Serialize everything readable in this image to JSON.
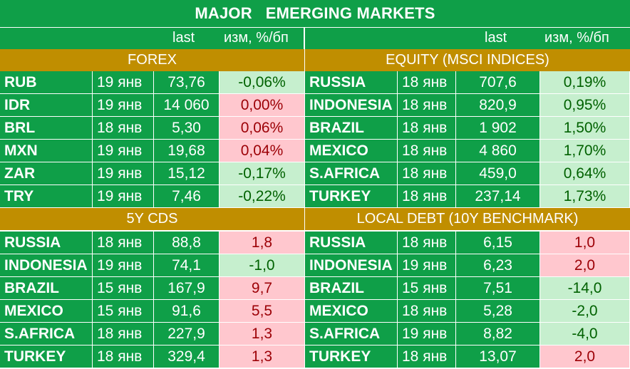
{
  "title": "MAJOR   EMERGING MARKETS",
  "header": {
    "left_last": "last",
    "left_change": "изм, %/бп",
    "right_last": "last",
    "right_change": "изм, %/бп"
  },
  "colors": {
    "green": "#0f9f48",
    "gold": "#c08e00",
    "neg_bg": "#c6efce",
    "neg_fg": "#006100",
    "pos_bg": "#ffc7ce",
    "pos_fg": "#9c0006"
  },
  "sections": {
    "forex": {
      "title": "FOREX",
      "rows": [
        {
          "name": "RUB",
          "date": "19 янв",
          "last": "73,76",
          "change": "-0,06%",
          "tone": "neg"
        },
        {
          "name": "IDR",
          "date": "19 янв",
          "last": "14 060",
          "change": "0,00%",
          "tone": "pos"
        },
        {
          "name": "BRL",
          "date": "18 янв",
          "last": "5,30",
          "change": "0,06%",
          "tone": "pos"
        },
        {
          "name": "MXN",
          "date": "19 янв",
          "last": "19,68",
          "change": "0,04%",
          "tone": "pos"
        },
        {
          "name": "ZAR",
          "date": "19 янв",
          "last": "15,12",
          "change": "-0,17%",
          "tone": "neg"
        },
        {
          "name": "TRY",
          "date": "19 янв",
          "last": "7,46",
          "change": "-0,22%",
          "tone": "neg"
        }
      ]
    },
    "equity": {
      "title": "EQUITY (MSCI INDICES)",
      "rows": [
        {
          "name": "RUSSIA",
          "date": "18 янв",
          "last": "707,6",
          "change": "0,19%",
          "tone": "neg"
        },
        {
          "name": "INDONESIA",
          "date": "18 янв",
          "last": "820,9",
          "change": "0,95%",
          "tone": "neg"
        },
        {
          "name": "BRAZIL",
          "date": "18 янв",
          "last": "1 902",
          "change": "1,50%",
          "tone": "neg"
        },
        {
          "name": "MEXICO",
          "date": "18 янв",
          "last": "4 860",
          "change": "1,70%",
          "tone": "neg"
        },
        {
          "name": "S.AFRICA",
          "date": "18 янв",
          "last": "459,0",
          "change": "0,64%",
          "tone": "neg"
        },
        {
          "name": "TURKEY",
          "date": "18 янв",
          "last": "237,14",
          "change": "1,73%",
          "tone": "neg"
        }
      ]
    },
    "cds": {
      "title": "5Y CDS",
      "rows": [
        {
          "name": "RUSSIA",
          "date": "18 янв",
          "last": "88,8",
          "change": "1,8",
          "tone": "pos"
        },
        {
          "name": "INDONESIA",
          "date": "19 янв",
          "last": "74,1",
          "change": "-1,0",
          "tone": "neg"
        },
        {
          "name": "BRAZIL",
          "date": "15 янв",
          "last": "167,9",
          "change": "9,7",
          "tone": "pos"
        },
        {
          "name": "MEXICO",
          "date": "15 янв",
          "last": "91,6",
          "change": "5,5",
          "tone": "pos"
        },
        {
          "name": "S.AFRICA",
          "date": "18 янв",
          "last": "227,9",
          "change": "1,3",
          "tone": "pos"
        },
        {
          "name": "TURKEY",
          "date": "18 янв",
          "last": "329,4",
          "change": "1,3",
          "tone": "pos"
        }
      ]
    },
    "debt": {
      "title": "LOCAL DEBT (10Y BENCHMARK)",
      "rows": [
        {
          "name": "RUSSIA",
          "date": "18 янв",
          "last": "6,15",
          "change": "1,0",
          "tone": "pos"
        },
        {
          "name": "INDONESIA",
          "date": "19 янв",
          "last": "6,23",
          "change": "2,0",
          "tone": "pos"
        },
        {
          "name": "BRAZIL",
          "date": "15 янв",
          "last": "7,51",
          "change": "-14,0",
          "tone": "neg"
        },
        {
          "name": "MEXICO",
          "date": "18 янв",
          "last": "5,28",
          "change": "-2,0",
          "tone": "neg"
        },
        {
          "name": "S.AFRICA",
          "date": "19 янв",
          "last": "8,82",
          "change": "-4,0",
          "tone": "neg"
        },
        {
          "name": "TURKEY",
          "date": "18 янв",
          "last": "13,07",
          "change": "2,0",
          "tone": "pos"
        }
      ]
    }
  }
}
